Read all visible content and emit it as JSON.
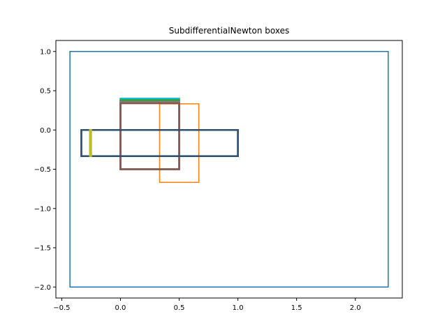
{
  "chart_data": {
    "type": "rectangles",
    "title": "SubdifferentialNewton boxes",
    "xlabel": "",
    "ylabel": "",
    "xlim": [
      -0.55,
      2.4
    ],
    "ylim": [
      -2.14,
      1.14
    ],
    "xticks": [
      -0.5,
      0.0,
      0.5,
      1.0,
      1.5,
      2.0
    ],
    "xtick_labels": [
      "−0.5",
      "0.0",
      "0.5",
      "1.0",
      "1.5",
      "2.0"
    ],
    "yticks": [
      1.0,
      0.5,
      0.0,
      -0.5,
      -1.0,
      -1.5,
      -2.0
    ],
    "ytick_labels": [
      "1.0",
      "0.5",
      "0.0",
      "−0.5",
      "−1.0",
      "−1.5",
      "−2.0"
    ],
    "grid": false,
    "boxes": [
      {
        "x": [
          -0.43,
          2.28
        ],
        "y": [
          -2.0,
          1.0
        ],
        "color": "#1f77b4"
      },
      {
        "x": [
          0.333,
          0.667
        ],
        "y": [
          -0.667,
          0.333
        ],
        "color": "#ff7f0e"
      },
      {
        "x": [
          0.0,
          0.5
        ],
        "y": [
          -0.5,
          0.4
        ],
        "color": "#17becf"
      },
      {
        "x": [
          0.0,
          0.5
        ],
        "y": [
          -0.5,
          0.38
        ],
        "color": "#2ca02c"
      },
      {
        "x": [
          0.0,
          0.5
        ],
        "y": [
          -0.5,
          0.36
        ],
        "color": "#7f7f7f"
      },
      {
        "x": [
          0.0,
          0.5
        ],
        "y": [
          -0.5,
          0.34
        ],
        "color": "#8c564b"
      },
      {
        "x": [
          -0.333,
          1.0
        ],
        "y": [
          -0.333,
          0.0
        ],
        "color": "#1f77b4"
      },
      {
        "x": [
          -0.333,
          1.0
        ],
        "y": [
          -0.333,
          0.0
        ],
        "color": "#2f4f6f"
      },
      {
        "x": [
          -0.26,
          -0.25
        ],
        "y": [
          -0.333,
          0.0
        ],
        "color": "#bcbd22"
      }
    ]
  }
}
